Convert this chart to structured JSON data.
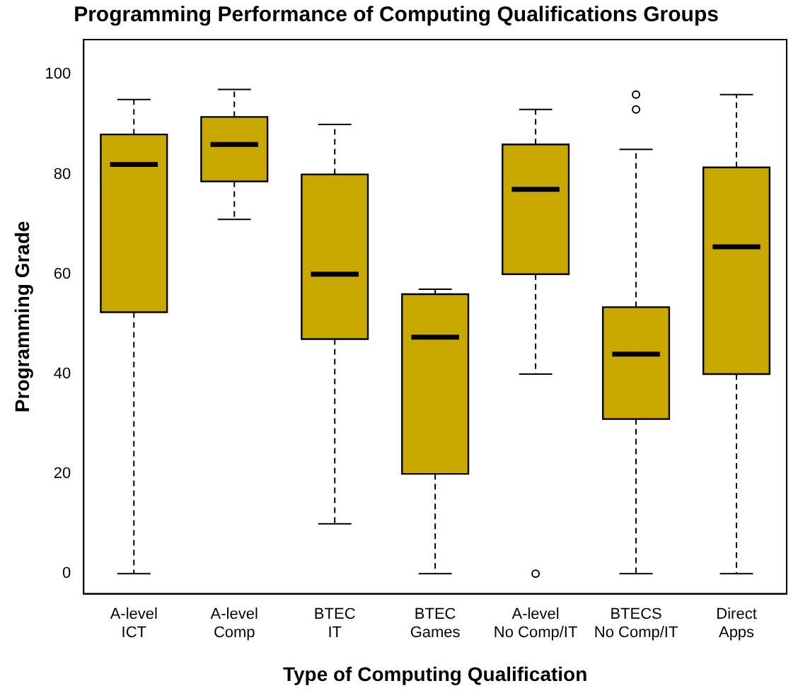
{
  "chart_data": {
    "type": "box",
    "title": "Programming Performance of Computing Qualifications Groups",
    "xlabel": "Type of Computing Qualification",
    "ylabel": "Programming Grade",
    "categories": [
      "A-level\nICT",
      "A-level\nComp",
      "BTEC\nIT",
      "BTEC\nGames",
      "A-level\nNo Comp/IT",
      "BTECS\nNo Comp/IT",
      "Direct\nApps"
    ],
    "color": "#c9a800",
    "boxes": [
      {
        "low": 0,
        "q1": 52.4,
        "median": 82,
        "q3": 88,
        "high": 95
      },
      {
        "low": 71,
        "q1": 78.6,
        "median": 86,
        "q3": 91.5,
        "high": 97
      },
      {
        "low": 10,
        "q1": 47,
        "median": 60,
        "q3": 80,
        "high": 90
      },
      {
        "low": 0,
        "q1": 20,
        "median": 47.4,
        "q3": 56,
        "high": 57
      },
      {
        "low": 40,
        "q1": 60,
        "median": 77,
        "q3": 86,
        "high": 93,
        "outliers": [
          0
        ]
      },
      {
        "low": 0,
        "q1": 31,
        "median": 44,
        "q3": 53.4,
        "high": 85,
        "outliers": [
          93,
          96
        ]
      },
      {
        "low": 0,
        "q1": 40,
        "median": 65.5,
        "q3": 81.4,
        "high": 96
      }
    ],
    "ylim": [
      -4,
      107
    ],
    "yticks": [
      0,
      20,
      40,
      60,
      80,
      100
    ],
    "grid": false
  }
}
